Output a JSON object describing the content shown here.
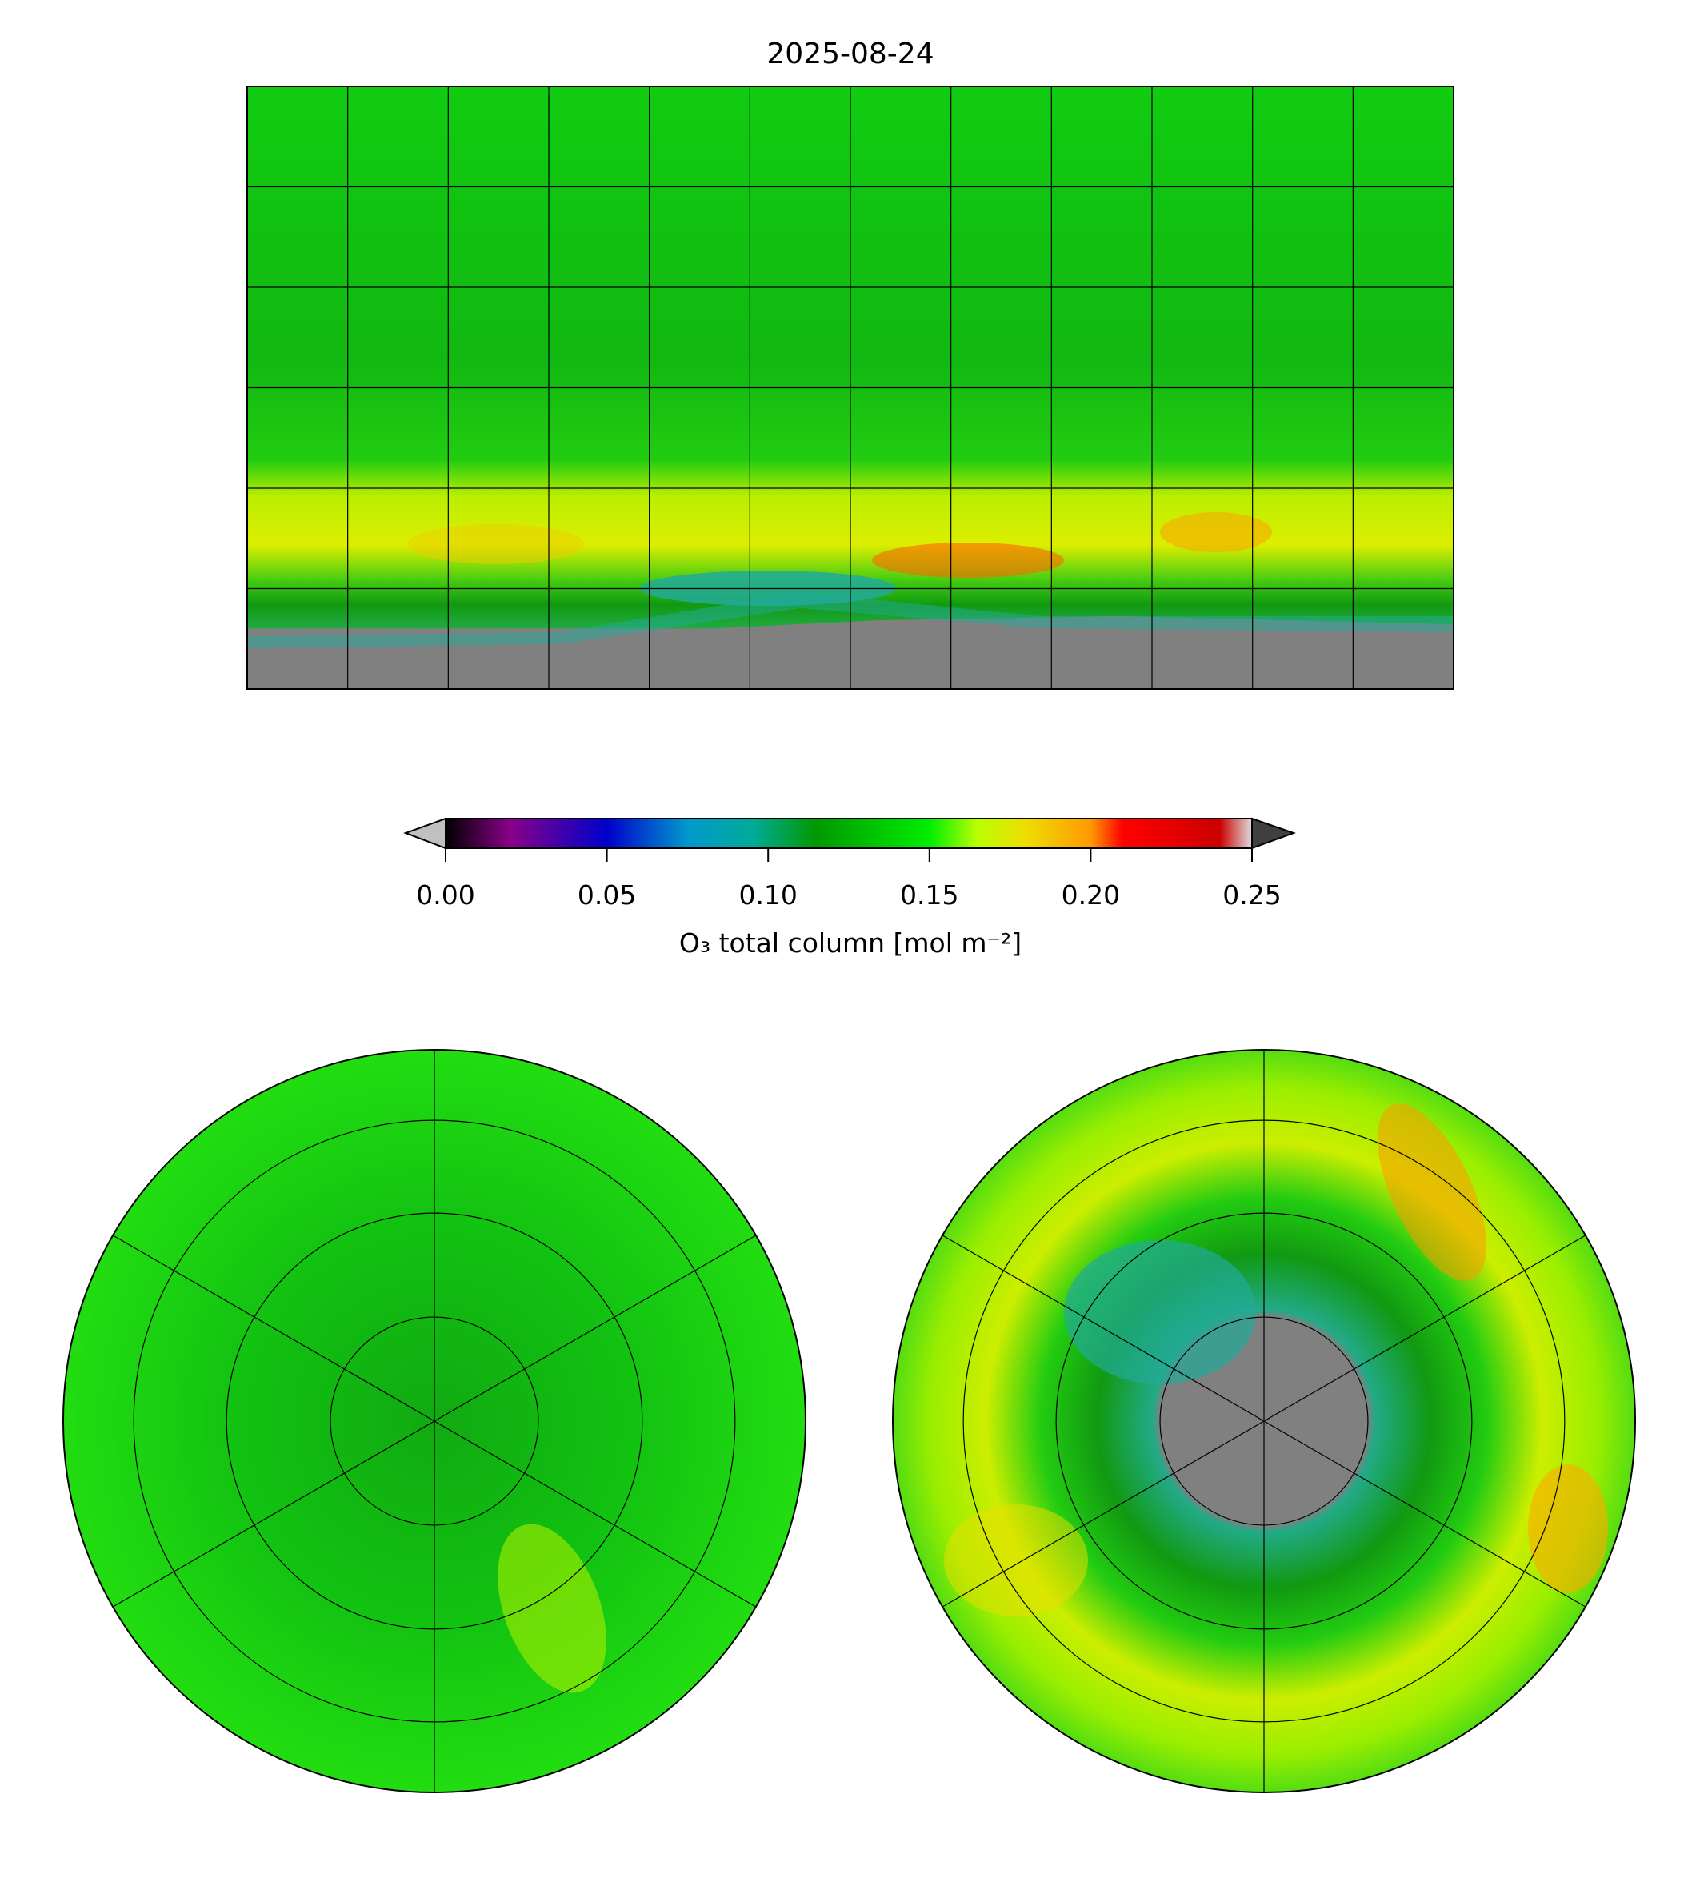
{
  "title": "2025-08-24",
  "colorbar": {
    "label": "O₃ total column [mol m⁻²]",
    "ticks": [
      "0.00",
      "0.05",
      "0.10",
      "0.15",
      "0.20",
      "0.25"
    ],
    "tick_values": [
      0.0,
      0.05,
      0.1,
      0.15,
      0.2,
      0.25
    ],
    "range": [
      0.0,
      0.25
    ],
    "extend": "both",
    "under_color": "#c0c0c0",
    "over_color": "#404040",
    "stops": [
      {
        "v": 0.0,
        "c": "#000000"
      },
      {
        "v": 0.02,
        "c": "#880088"
      },
      {
        "v": 0.05,
        "c": "#0000cc"
      },
      {
        "v": 0.075,
        "c": "#0099cc"
      },
      {
        "v": 0.095,
        "c": "#00aa99"
      },
      {
        "v": 0.115,
        "c": "#009900"
      },
      {
        "v": 0.15,
        "c": "#00ee00"
      },
      {
        "v": 0.165,
        "c": "#bbff00"
      },
      {
        "v": 0.18,
        "c": "#eedd00"
      },
      {
        "v": 0.2,
        "c": "#ff9900"
      },
      {
        "v": 0.21,
        "c": "#ff0000"
      },
      {
        "v": 0.24,
        "c": "#cc0000"
      },
      {
        "v": 0.25,
        "c": "#dddddd"
      }
    ]
  },
  "chart_data": {
    "type": "heatmap",
    "title": "2025-08-24",
    "panels": [
      "global equirectangular map",
      "north polar stereographic",
      "south polar stereographic"
    ],
    "variable": "O₃ total column [mol m⁻²]",
    "clim": [
      0.0,
      0.25
    ],
    "gridlines": {
      "lon_step_deg": 30,
      "lat_step_deg": 30,
      "polar_lat_step_deg": 15
    },
    "features": {
      "typical_value": 0.14,
      "southern_midlatitude_max": 0.2,
      "antarctic_hole_value": 0.1,
      "missing_data_color": "#808080"
    }
  }
}
